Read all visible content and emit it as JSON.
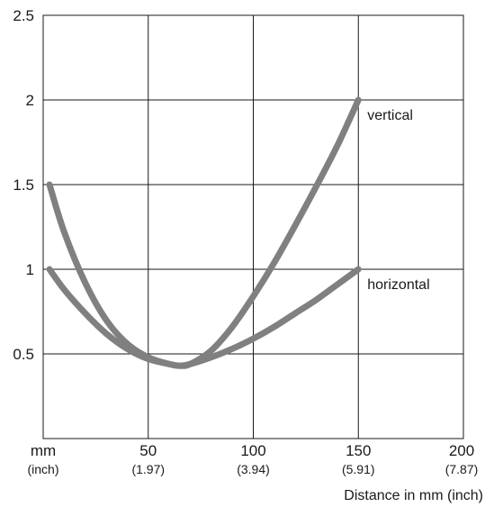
{
  "chart_data": {
    "type": "line",
    "title": "",
    "xlabel": "Distance in mm (inch)",
    "ylabel": "",
    "xlim": [
      0,
      200
    ],
    "ylim": [
      0,
      2.5
    ],
    "grid": true,
    "legend": "inline labels at line ends",
    "x_unit_label": {
      "main": "mm",
      "sub": "(inch)"
    },
    "x_ticks": [
      {
        "value": 50,
        "label": "50",
        "sub": "(1.97)"
      },
      {
        "value": 100,
        "label": "100",
        "sub": "(3.94)"
      },
      {
        "value": 150,
        "label": "150",
        "sub": "(5.91)"
      },
      {
        "value": 200,
        "label": "200",
        "sub": "(7.87)"
      }
    ],
    "y_ticks": [
      {
        "value": 0.5,
        "label": "0.5"
      },
      {
        "value": 1,
        "label": "1"
      },
      {
        "value": 1.5,
        "label": "1.5"
      },
      {
        "value": 2,
        "label": "2"
      },
      {
        "value": 2.5,
        "label": "2.5"
      }
    ],
    "line_color": "#808080",
    "series": [
      {
        "name": "vertical",
        "x": [
          3,
          10,
          20,
          30,
          40,
          50,
          60,
          65,
          70,
          80,
          90,
          100,
          110,
          120,
          130,
          140,
          150
        ],
        "y": [
          1.5,
          1.22,
          0.92,
          0.7,
          0.56,
          0.48,
          0.44,
          0.43,
          0.44,
          0.52,
          0.66,
          0.84,
          1.04,
          1.26,
          1.49,
          1.73,
          2.0
        ]
      },
      {
        "name": "horizontal",
        "x": [
          3,
          10,
          20,
          30,
          40,
          50,
          60,
          65,
          70,
          80,
          90,
          100,
          110,
          120,
          130,
          140,
          150
        ],
        "y": [
          1.0,
          0.88,
          0.74,
          0.62,
          0.53,
          0.47,
          0.44,
          0.43,
          0.44,
          0.48,
          0.53,
          0.59,
          0.66,
          0.74,
          0.82,
          0.91,
          1.0
        ]
      }
    ]
  }
}
